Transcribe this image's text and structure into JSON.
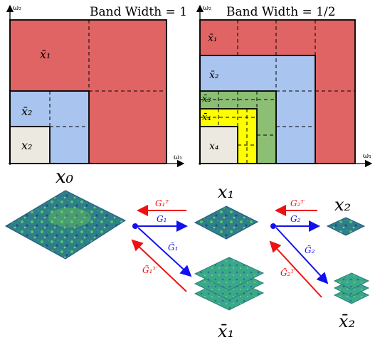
{
  "panels": [
    {
      "title": "Band Width = 1",
      "axis_y": "ω₂",
      "axis_x": "ω₁",
      "regions": [
        "x̄₁",
        "x̄₂",
        "x₂"
      ]
    },
    {
      "title": "Band Width = 1/2",
      "axis_y": "ω₂",
      "axis_x": "ω₁",
      "regions": [
        "x̄₁",
        "x̄₂",
        "x̄₃",
        "x̄₄",
        "x₄"
      ]
    }
  ],
  "pyramid": {
    "x0": "x₀",
    "x1": "x₁",
    "x2": "x₂",
    "xbar1": "x̄₁",
    "xbar2": "x̄₂",
    "ops1": {
      "GT": "G₁ᵀ",
      "G": "G₁",
      "Gt": "G̃₁",
      "GtT": "G̃₁ᵀ"
    },
    "ops2": {
      "GT": "G₂ᵀ",
      "G": "G₂",
      "Gt": "G̃₂",
      "GtT": "G̃₂ᵀ"
    }
  },
  "colors": {
    "red": "#e06464",
    "blue": "#a9c4ee",
    "green": "#8cbf73",
    "yellow": "#ffff00",
    "beige": "#ece9e0",
    "arrow_red": "#ee1111",
    "arrow_blue": "#1111ee",
    "tile_dark": "#3c6e93",
    "tile_green": "#3fb58a"
  }
}
